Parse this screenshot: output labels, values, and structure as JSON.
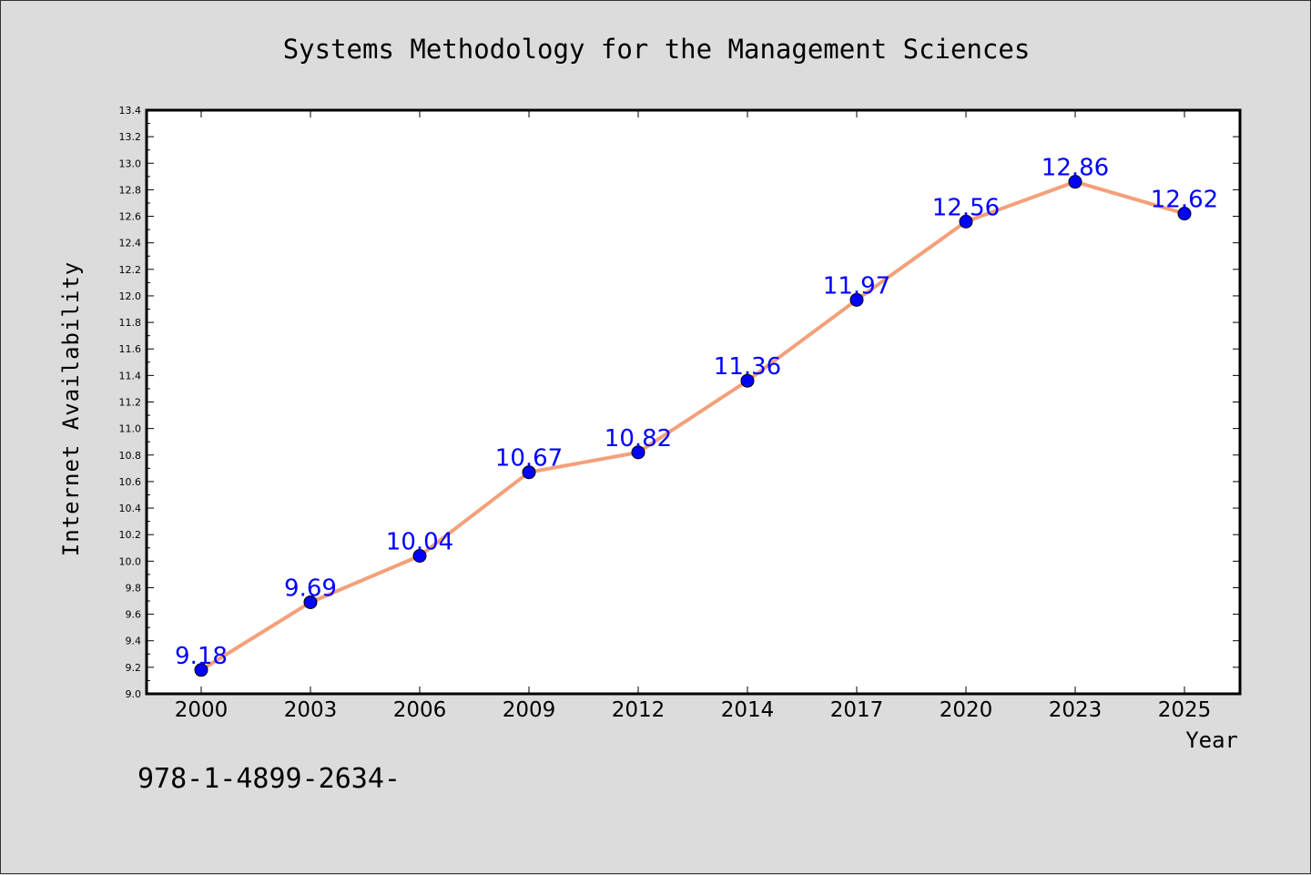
{
  "chart_data": {
    "type": "line",
    "title": "Systems Methodology for the Management Sciences",
    "xlabel": "Year",
    "ylabel": "Internet Availability",
    "categories": [
      "2000",
      "2003",
      "2006",
      "2009",
      "2012",
      "2014",
      "2017",
      "2020",
      "2023",
      "2025"
    ],
    "series": [
      {
        "values": [
          9.18,
          9.69,
          10.04,
          10.67,
          10.82,
          11.36,
          11.97,
          12.56,
          12.86,
          12.62
        ]
      }
    ],
    "ylim": [
      9.0,
      13.4
    ],
    "ytick_step": 0.2,
    "grid": false,
    "data_labels": true,
    "colors": {
      "line": "#f4a07a",
      "marker": "#0000ff",
      "label": "#0000ff",
      "background": "#dcdcdc",
      "plot_background": "#ffffff"
    }
  },
  "footer": {
    "text": "978-1-4899-2634-"
  }
}
